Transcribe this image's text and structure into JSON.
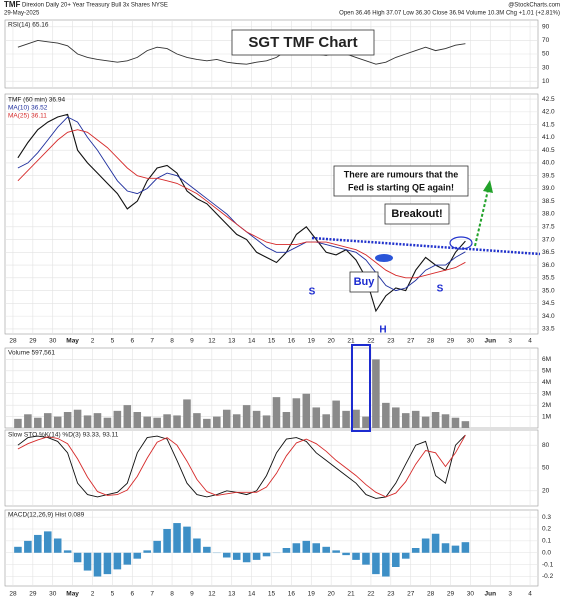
{
  "chart_data": {
    "type": "stock",
    "title": "SGT TMF Chart",
    "symbol": "TMF",
    "subtitle": "Direxion Daily 20+ Year Treasury Bull 3x Shares NYSE",
    "date": "29-May-2025",
    "quote": "Open 36.46 High 37.07 Low 36.30 Close 36.94 Volume 10.3M Chg +1.01 (+2.81%)",
    "source": "@StockCharts.com",
    "xlim": [
      -0.4,
      26.4
    ],
    "xticks": [
      {
        "value": 0,
        "label": "28"
      },
      {
        "value": 1,
        "label": "29"
      },
      {
        "value": 2,
        "label": "30"
      },
      {
        "value": 3,
        "label": "May"
      },
      {
        "value": 4,
        "label": "2"
      },
      {
        "value": 5,
        "label": "5"
      },
      {
        "value": 6,
        "label": "6"
      },
      {
        "value": 7,
        "label": "7"
      },
      {
        "value": 8,
        "label": "8"
      },
      {
        "value": 9,
        "label": "9"
      },
      {
        "value": 10,
        "label": "12"
      },
      {
        "value": 11,
        "label": "13"
      },
      {
        "value": 12,
        "label": "14"
      },
      {
        "value": 13,
        "label": "15"
      },
      {
        "value": 14,
        "label": "16"
      },
      {
        "value": 15,
        "label": "19"
      },
      {
        "value": 16,
        "label": "20"
      },
      {
        "value": 17,
        "label": "21"
      },
      {
        "value": 18,
        "label": "22"
      },
      {
        "value": 19,
        "label": "23"
      },
      {
        "value": 20,
        "label": "27"
      },
      {
        "value": 21,
        "label": "28"
      },
      {
        "value": 22,
        "label": "29"
      },
      {
        "value": 23,
        "label": "30"
      },
      {
        "value": 24,
        "label": "Jun"
      },
      {
        "value": 25,
        "label": "3"
      },
      {
        "value": 26,
        "label": "4"
      }
    ],
    "x": [
      0.25,
      0.75,
      1.25,
      1.75,
      2.25,
      2.75,
      3.25,
      3.75,
      4.25,
      4.75,
      5.25,
      5.75,
      6.25,
      6.75,
      7.25,
      7.75,
      8.25,
      8.75,
      9.25,
      9.75,
      10.25,
      10.75,
      11.25,
      11.75,
      12.25,
      12.75,
      13.25,
      13.75,
      14.25,
      14.75,
      15.25,
      15.75,
      16.25,
      16.75,
      17.25,
      17.75,
      18.25,
      18.75,
      19.25,
      19.75,
      20.25,
      20.75,
      21.25,
      21.75,
      22.25,
      22.75
    ],
    "panels": [
      {
        "type": "line",
        "label": "RSI(14) 65.16",
        "ylim": [
          0,
          100
        ],
        "yticks": [
          90,
          70,
          50,
          30,
          10
        ],
        "grid": true,
        "series": [
          {
            "color": "#333333",
            "values": [
              60,
              65,
              70,
              68,
              66,
              62,
              50,
              45,
              42,
              40,
              38,
              40,
              45,
              55,
              60,
              58,
              50,
              45,
              42,
              40,
              42,
              38,
              36,
              35,
              38,
              40,
              45,
              55,
              60,
              55,
              50,
              48,
              52,
              50,
              45,
              40,
              35,
              38,
              45,
              50,
              55,
              60,
              55,
              58,
              63,
              65.16
            ]
          }
        ]
      },
      {
        "type": "line",
        "ylim": [
          33.3,
          42.7
        ],
        "grid": true,
        "yticks": [
          42.5,
          {
            "value": 42,
            "label": "42.0"
          },
          41.5,
          {
            "value": 41,
            "label": "41.0"
          },
          40.5,
          {
            "value": 40,
            "label": "40.0"
          },
          39.5,
          {
            "value": 39,
            "label": "39.0"
          },
          38.5,
          {
            "value": 38,
            "label": "38.0"
          },
          37.5,
          {
            "value": 37,
            "label": "37.0"
          },
          36.5,
          {
            "value": 36,
            "label": "36.0"
          },
          35.5,
          {
            "value": 35,
            "label": "35.0"
          },
          34.5,
          {
            "value": 34,
            "label": "34.0"
          },
          33.5
        ],
        "series": [
          {
            "name": "TMF (60 min) 36.94",
            "color": "#111111",
            "values": [
              40.2,
              40.8,
              41.3,
              41.6,
              41.8,
              41.9,
              40.5,
              40.0,
              39.6,
              39.2,
              38.8,
              38.2,
              38.5,
              39.3,
              39.8,
              39.9,
              39.6,
              38.9,
              38.6,
              38.4,
              38.0,
              37.6,
              37.2,
              37.0,
              36.5,
              36.3,
              36.1,
              36.5,
              37.2,
              37.5,
              37.0,
              36.5,
              36.4,
              36.6,
              36.2,
              35.5,
              34.2,
              34.8,
              35.1,
              35.0,
              35.8,
              36.3,
              36.0,
              35.8,
              36.5,
              36.94
            ]
          },
          {
            "name": "MA(10) 36.52",
            "color": "#1f2f9e",
            "values": [
              39.8,
              40.0,
              40.4,
              40.9,
              41.4,
              41.8,
              41.6,
              41.0,
              40.5,
              39.9,
              39.3,
              38.9,
              38.8,
              39.0,
              39.4,
              39.6,
              39.5,
              39.2,
              38.9,
              38.6,
              38.3,
              38.0,
              37.6,
              37.3,
              37.0,
              36.7,
              36.5,
              36.5,
              36.7,
              36.9,
              36.9,
              36.8,
              36.7,
              36.6,
              36.5,
              36.2,
              35.7,
              35.2,
              35.0,
              35.1,
              35.4,
              35.8,
              36.0,
              36.0,
              36.3,
              36.52
            ]
          },
          {
            "name": "MA(25) 36.11",
            "color": "#d62a2a",
            "values": [
              39.3,
              39.7,
              40.1,
              40.5,
              40.9,
              41.2,
              41.3,
              41.2,
              40.9,
              40.6,
              40.2,
              39.8,
              39.5,
              39.4,
              39.4,
              39.3,
              39.2,
              39.0,
              38.8,
              38.5,
              38.2,
              37.9,
              37.6,
              37.3,
              37.1,
              36.9,
              36.8,
              36.8,
              36.8,
              36.9,
              36.9,
              36.9,
              36.8,
              36.7,
              36.6,
              36.4,
              36.1,
              35.8,
              35.6,
              35.5,
              35.5,
              35.6,
              35.7,
              35.8,
              35.9,
              36.11
            ]
          }
        ],
        "annotations": [
          "There are rumours that the",
          "Fed is starting QE again!",
          "Breakout!",
          "Buy",
          "S",
          "S",
          "H"
        ]
      },
      {
        "type": "bar",
        "label": "Volume 597,561",
        "ylim": [
          0,
          7000000
        ],
        "grid": true,
        "yticks": [
          {
            "value": 6000000,
            "label": "6M"
          },
          {
            "value": 5000000,
            "label": "5M"
          },
          {
            "value": 4000000,
            "label": "4M"
          },
          {
            "value": 3000000,
            "label": "3M"
          },
          {
            "value": 2000000,
            "label": "2M"
          },
          {
            "value": 1000000,
            "label": "1M"
          }
        ],
        "series": [
          {
            "color": "#8a8a8a",
            "values": [
              800000,
              1200000,
              900000,
              1300000,
              1000000,
              1400000,
              1600000,
              1100000,
              1300000,
              900000,
              1500000,
              2000000,
              1400000,
              1000000,
              900000,
              1200000,
              1100000,
              2500000,
              1300000,
              800000,
              1000000,
              1600000,
              1200000,
              2000000,
              1500000,
              1100000,
              2700000,
              1400000,
              2600000,
              3000000,
              1800000,
              1200000,
              2400000,
              1500000,
              1600000,
              1000000,
              6000000,
              2200000,
              1800000,
              1300000,
              1500000,
              1000000,
              1400000,
              1200000,
              900000,
              597561
            ]
          }
        ]
      },
      {
        "type": "line",
        "label": "Slow STO %K(14) %D(3) 93.33, 93.11",
        "ylim": [
          0,
          100
        ],
        "yticks": [
          80,
          50,
          20
        ],
        "grid": true,
        "series": [
          {
            "color": "#111111",
            "values": [
              80,
              90,
              92,
              90,
              85,
              70,
              30,
              15,
              12,
              15,
              18,
              30,
              70,
              90,
              92,
              88,
              60,
              30,
              15,
              12,
              15,
              20,
              18,
              15,
              20,
              40,
              70,
              88,
              90,
              85,
              70,
              60,
              50,
              40,
              30,
              15,
              10,
              12,
              30,
              55,
              80,
              85,
              40,
              30,
              80,
              93.33
            ]
          },
          {
            "color": "#d62a2a",
            "values": [
              75,
              82,
              87,
              91,
              89,
              82,
              62,
              38,
              19,
              14,
              15,
              21,
              39,
              63,
              84,
              90,
              80,
              59,
              35,
              19,
              14,
              16,
              18,
              18,
              18,
              25,
              43,
              66,
              83,
              88,
              82,
              72,
              60,
              50,
              40,
              28,
              18,
              12,
              17,
              32,
              55,
              73,
              70,
              52,
              70,
              93.11
            ]
          }
        ]
      },
      {
        "type": "bar",
        "label": "MACD(12,26,9) Hist 0.089",
        "ylim": [
          -0.28,
          0.36
        ],
        "grid": true,
        "yticks": [
          0.3,
          0.2,
          0.1,
          {
            "value": 0,
            "label": "0.0"
          },
          -0.1,
          -0.2
        ],
        "series": [
          {
            "color": "#3d8fc6",
            "values": [
              0.05,
              0.1,
              0.15,
              0.18,
              0.12,
              0.02,
              -0.08,
              -0.15,
              -0.2,
              -0.18,
              -0.14,
              -0.1,
              -0.05,
              0.02,
              0.1,
              0.2,
              0.25,
              0.22,
              0.12,
              0.05,
              0,
              -0.04,
              -0.06,
              -0.08,
              -0.06,
              -0.03,
              0,
              0.04,
              0.08,
              0.1,
              0.08,
              0.05,
              0.02,
              -0.02,
              -0.06,
              -0.1,
              -0.18,
              -0.2,
              -0.12,
              -0.05,
              0.04,
              0.12,
              0.16,
              0.08,
              0.06,
              0.089
            ]
          }
        ]
      }
    ]
  }
}
